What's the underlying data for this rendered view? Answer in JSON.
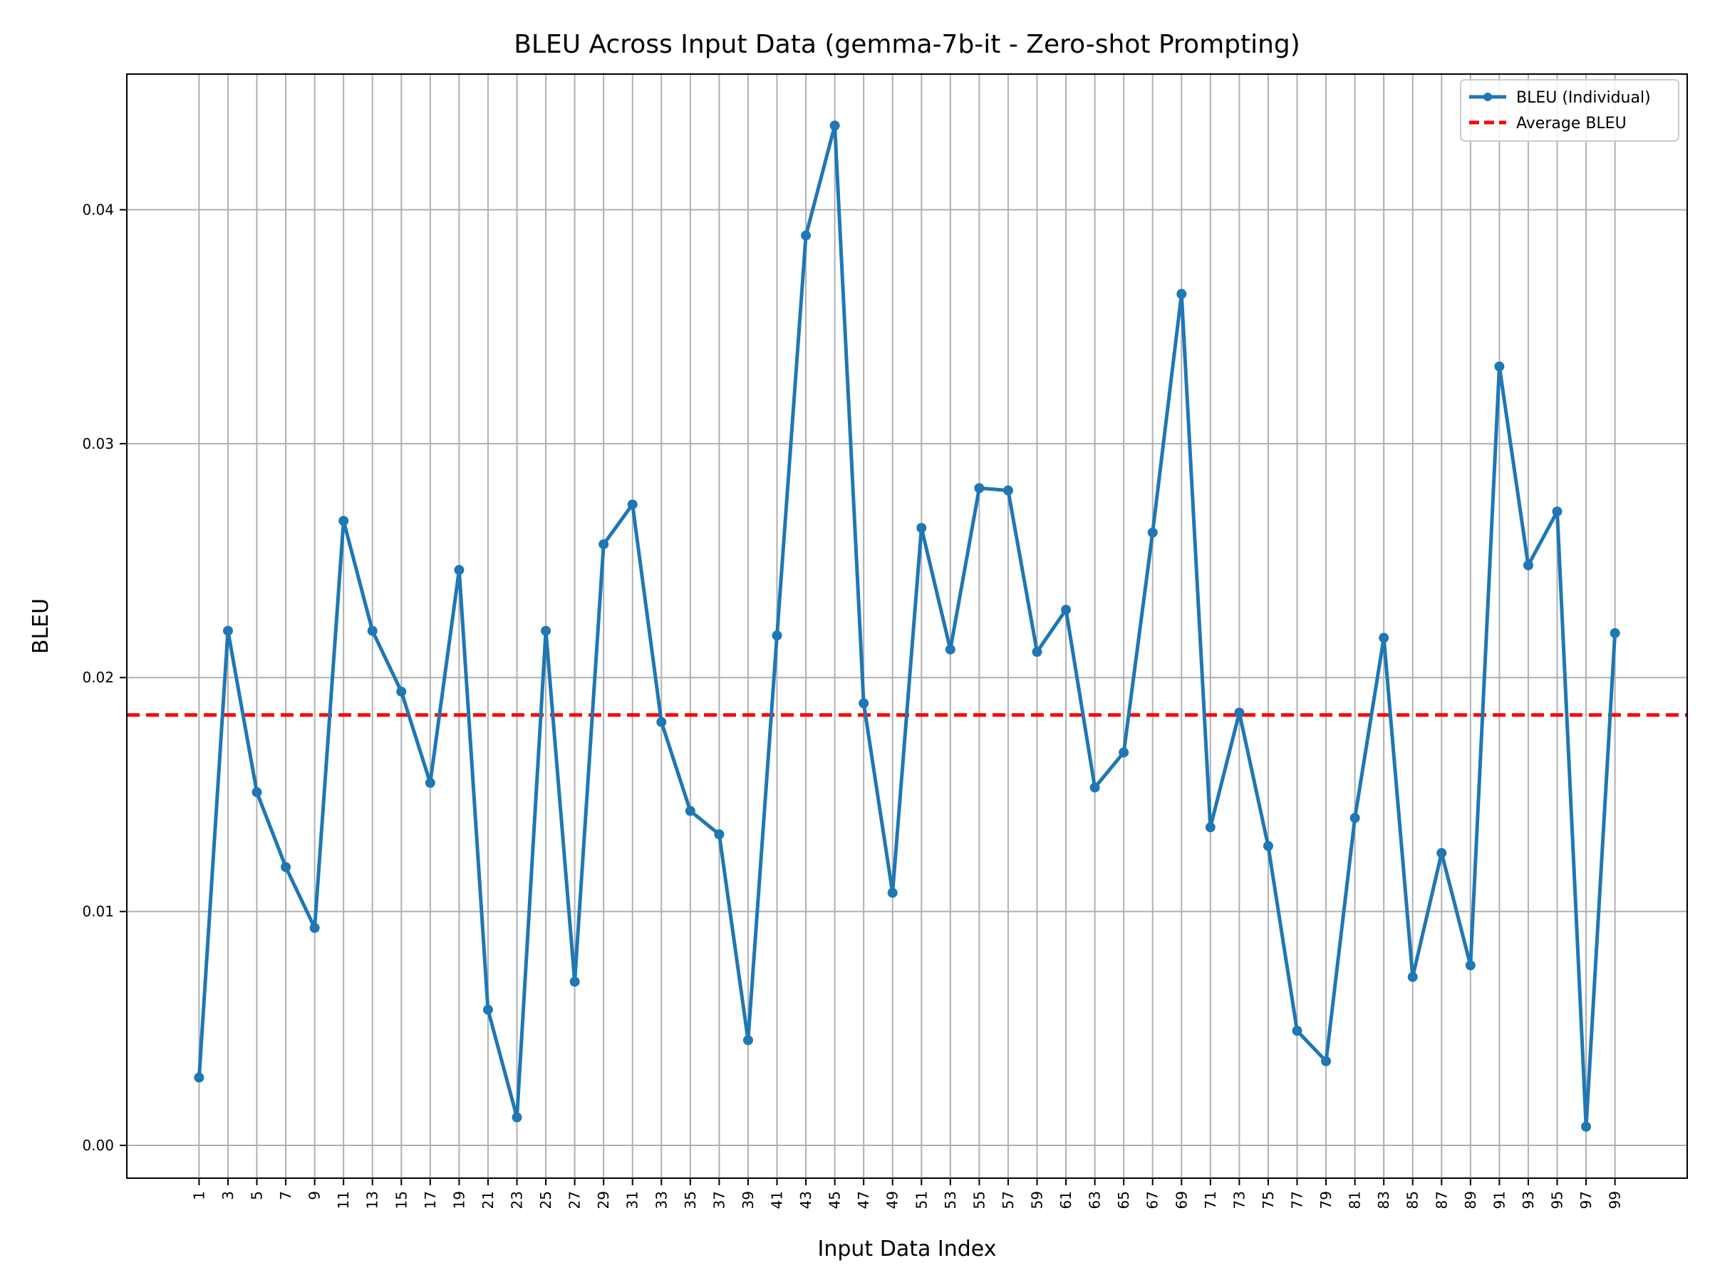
{
  "chart_data": {
    "type": "line",
    "title": "BLEU Across Input Data (gemma-7b-it - Zero-shot Prompting)",
    "xlabel": "Input Data Index",
    "ylabel": "BLEU",
    "x": [
      1,
      3,
      5,
      7,
      9,
      11,
      13,
      15,
      17,
      19,
      21,
      23,
      25,
      27,
      29,
      31,
      33,
      35,
      37,
      39,
      41,
      43,
      45,
      47,
      49,
      51,
      53,
      55,
      57,
      59,
      61,
      63,
      65,
      67,
      69,
      71,
      73,
      75,
      77,
      79,
      81,
      83,
      85,
      87,
      89,
      91,
      93,
      95,
      97,
      99
    ],
    "x_tick_labels": [
      "1",
      "3",
      "5",
      "7",
      "9",
      "11",
      "13",
      "15",
      "17",
      "19",
      "21",
      "23",
      "25",
      "27",
      "29",
      "31",
      "33",
      "35",
      "37",
      "39",
      "41",
      "43",
      "45",
      "47",
      "49",
      "51",
      "53",
      "55",
      "57",
      "59",
      "61",
      "63",
      "65",
      "67",
      "69",
      "71",
      "73",
      "75",
      "77",
      "79",
      "81",
      "83",
      "85",
      "87",
      "89",
      "91",
      "93",
      "95",
      "97",
      "99"
    ],
    "xlim": [
      -4,
      104
    ],
    "ylim": [
      -0.0014,
      0.0458
    ],
    "y_ticks": [
      0.0,
      0.01,
      0.02,
      0.03,
      0.04
    ],
    "y_tick_labels": [
      "0.00",
      "0.01",
      "0.02",
      "0.03",
      "0.04"
    ],
    "grid": true,
    "legend_position": "top-right",
    "series": [
      {
        "name": "BLEU (Individual)",
        "color": "#1f77b4",
        "style": "solid-with-markers",
        "values": [
          0.0029,
          0.022,
          0.0151,
          0.0119,
          0.0093,
          0.0267,
          0.022,
          0.0194,
          0.0155,
          0.0246,
          0.0058,
          0.0012,
          0.022,
          0.007,
          0.0257,
          0.0274,
          0.0181,
          0.0143,
          0.0133,
          0.0045,
          0.0218,
          0.0389,
          0.0436,
          0.0189,
          0.0108,
          0.0264,
          0.0212,
          0.0281,
          0.028,
          0.0211,
          0.0229,
          0.0153,
          0.0168,
          0.0262,
          0.0364,
          0.0136,
          0.0185,
          0.0128,
          0.0049,
          0.0036,
          0.014,
          0.0217,
          0.0072,
          0.0125,
          0.0077,
          0.0333,
          0.0248,
          0.0271,
          0.0008,
          0.0219
        ]
      },
      {
        "name": "Average BLEU",
        "color": "#ff0000",
        "style": "dashed",
        "value": 0.0184
      }
    ]
  }
}
